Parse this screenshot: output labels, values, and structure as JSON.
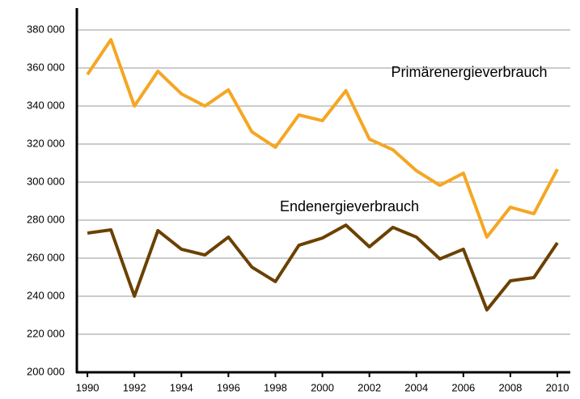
{
  "chart_data": {
    "type": "line",
    "x": [
      1990,
      1991,
      1992,
      1993,
      1994,
      1995,
      1996,
      1997,
      1998,
      1999,
      2000,
      2001,
      2002,
      2003,
      2004,
      2005,
      2006,
      2007,
      2008,
      2009,
      2010
    ],
    "series": [
      {
        "name": "Primärenergieverbrauch",
        "color": "#f5a623",
        "values": [
          356600,
          374900,
          340000,
          358300,
          346400,
          340000,
          348500,
          326400,
          318300,
          335300,
          332300,
          348100,
          322600,
          317000,
          306000,
          298300,
          304700,
          271100,
          286800,
          283400,
          306800
        ]
      },
      {
        "name": "Endenergieverbrauch",
        "color": "#6b4100",
        "values": [
          273200,
          274900,
          240000,
          274500,
          264700,
          261700,
          271100,
          255300,
          247700,
          266800,
          270600,
          277400,
          266000,
          276200,
          271100,
          259600,
          264700,
          232800,
          248100,
          249800,
          268100
        ]
      }
    ],
    "xlim": [
      1989.55,
      2010.55
    ],
    "xticks": [
      1990,
      1992,
      1994,
      1996,
      1998,
      2000,
      2002,
      2004,
      2006,
      2008,
      2010
    ],
    "ylim": [
      200000,
      391500
    ],
    "yticks": [
      {
        "value": 200000,
        "label": "200 000"
      },
      {
        "value": 220000,
        "label": "220 000"
      },
      {
        "value": 240000,
        "label": "240 000"
      },
      {
        "value": 260000,
        "label": "260 000"
      },
      {
        "value": 280000,
        "label": "280 000"
      },
      {
        "value": 300000,
        "label": "300 000"
      },
      {
        "value": 320000,
        "label": "320 000"
      },
      {
        "value": 340000,
        "label": "340 000"
      },
      {
        "value": 360000,
        "label": "360 000"
      },
      {
        "value": 380000,
        "label": "380 000"
      }
    ],
    "grid": true
  }
}
